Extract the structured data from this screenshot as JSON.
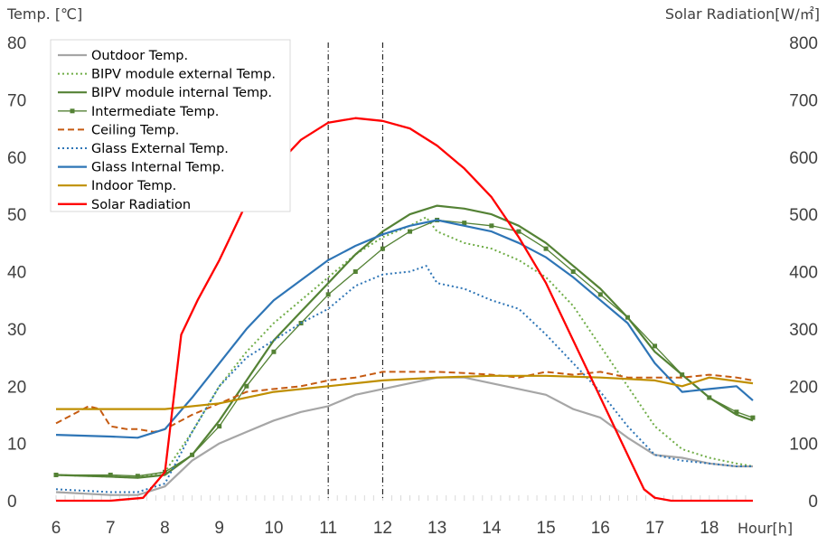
{
  "chart_data": {
    "type": "line",
    "title": "",
    "xlabel": "Hour[h]",
    "ylabel_left": "Temp. [℃]",
    "ylabel_right": "Solar Radiation[W/㎡]",
    "xlim": [
      6,
      19
    ],
    "ylim_left": [
      0,
      80
    ],
    "ylim_right": [
      0,
      800
    ],
    "x_ticks": [
      6,
      7,
      8,
      9,
      10,
      11,
      12,
      13,
      14,
      15,
      16,
      17,
      18
    ],
    "x_tick_labels": [
      "6",
      "7",
      "8",
      "9",
      "10",
      "11",
      "12",
      "13",
      "14",
      "15",
      "16",
      "17",
      "18"
    ],
    "y_left_ticks": [
      0,
      10,
      20,
      30,
      40,
      50,
      60,
      70,
      80
    ],
    "y_left_tick_labels": [
      "0",
      "10",
      "20",
      "30",
      "40",
      "50",
      "60",
      "70",
      "80"
    ],
    "y_right_ticks": [
      0,
      100,
      200,
      300,
      400,
      500,
      600,
      700,
      800
    ],
    "y_right_tick_labels": [
      "0",
      "100",
      "200",
      "300",
      "400",
      "500",
      "600",
      "700",
      "800"
    ],
    "vertical_reference_lines": [
      11,
      12
    ],
    "grid": false,
    "legend_position": "top-left",
    "series": [
      {
        "name": "Outdoor Temp.",
        "axis": "left",
        "color": "#a6a6a6",
        "style": "solid",
        "x": [
          6,
          7,
          7.5,
          8,
          8.5,
          9,
          9.5,
          10,
          10.5,
          11,
          11.5,
          12,
          12.5,
          13,
          13.5,
          14,
          14.5,
          15,
          15.5,
          16,
          16.5,
          17,
          17.5,
          18,
          18.5,
          18.8
        ],
        "y": [
          1.5,
          1,
          1,
          2.5,
          7,
          10,
          12,
          14,
          15.5,
          16.5,
          18.5,
          19.5,
          20.5,
          21.5,
          21.5,
          20.5,
          19.5,
          18.5,
          16,
          14.5,
          11,
          8,
          7.5,
          6.5,
          6,
          6
        ]
      },
      {
        "name": "BIPV module external Temp.",
        "axis": "left",
        "color": "#70ad47",
        "style": "dotted",
        "x": [
          6,
          7,
          7.5,
          8,
          8.5,
          9,
          9.5,
          10,
          10.5,
          11,
          11.5,
          12,
          12.5,
          12.8,
          13,
          13.5,
          14,
          14.5,
          15,
          15.5,
          16,
          16.5,
          17,
          17.5,
          18,
          18.5,
          18.8
        ],
        "y": [
          4.5,
          4.2,
          4,
          5,
          12,
          20,
          26,
          31,
          35,
          39,
          43,
          46,
          48,
          49.5,
          47,
          45,
          44,
          42,
          39,
          34,
          27,
          20,
          13,
          9,
          7.5,
          6.5,
          6
        ]
      },
      {
        "name": "BIPV module internal Temp.",
        "axis": "left",
        "color": "#548235",
        "style": "solid",
        "x": [
          6,
          7,
          7.5,
          8,
          8.5,
          9,
          9.5,
          10,
          10.5,
          11,
          11.5,
          12,
          12.5,
          13,
          13.5,
          14,
          14.5,
          15,
          15.5,
          16,
          16.5,
          17,
          17.5,
          18,
          18.5,
          18.8
        ],
        "y": [
          4.5,
          4.2,
          4,
          4.5,
          8,
          14,
          21,
          28,
          33,
          38,
          43,
          47,
          50,
          51.5,
          51,
          50,
          48,
          45,
          41,
          37,
          32,
          26,
          22,
          18,
          15,
          14
        ]
      },
      {
        "name": "Intermediate Temp.",
        "axis": "left",
        "color": "#548235",
        "style": "marker",
        "x": [
          6,
          7,
          7.5,
          8,
          8.5,
          9,
          9.5,
          10,
          10.5,
          11,
          11.5,
          12,
          12.5,
          13,
          13.5,
          14,
          14.5,
          15,
          15.5,
          16,
          16.5,
          17,
          17.5,
          18,
          18.5,
          18.8
        ],
        "y": [
          4.5,
          4.5,
          4.3,
          5,
          8,
          13,
          20,
          26,
          31,
          36,
          40,
          44,
          47,
          49,
          48.5,
          48,
          47,
          44,
          40,
          36,
          32,
          27,
          22,
          18,
          15.5,
          14.5
        ]
      },
      {
        "name": "Ceiling Temp.",
        "axis": "left",
        "color": "#c55a11",
        "style": "dashed",
        "x": [
          6,
          6.3,
          6.6,
          6.8,
          7,
          7.3,
          7.5,
          7.8,
          8,
          8.5,
          9,
          9.5,
          10,
          10.5,
          11,
          11.5,
          12,
          12.5,
          13,
          13.5,
          14,
          14.5,
          15,
          15.5,
          16,
          16.5,
          17,
          17.5,
          18,
          18.5,
          18.8
        ],
        "y": [
          13.5,
          15,
          16.5,
          16,
          13,
          12.5,
          12.5,
          12,
          12.5,
          15,
          17,
          19,
          19.5,
          20,
          21,
          21.5,
          22.5,
          22.5,
          22.5,
          22.3,
          22,
          21.5,
          22.5,
          22,
          22.5,
          21.5,
          21.5,
          21.5,
          22,
          21.5,
          21
        ]
      },
      {
        "name": "Glass External Temp.",
        "axis": "left",
        "color": "#2e75b6",
        "style": "dotted",
        "x": [
          6,
          7,
          7.5,
          8,
          8.5,
          9,
          9.5,
          10,
          10.5,
          11,
          11.5,
          12,
          12.5,
          12.8,
          13,
          13.5,
          14,
          14.5,
          15,
          15.5,
          16,
          16.5,
          17,
          17.5,
          18,
          18.5,
          18.8
        ],
        "y": [
          2,
          1.5,
          1.5,
          3,
          12,
          20,
          25,
          28,
          31,
          33.5,
          37.5,
          39.5,
          40,
          41,
          38,
          37,
          35,
          33.5,
          29,
          24,
          19,
          13,
          8,
          7,
          6.5,
          6,
          6
        ]
      },
      {
        "name": "Glass Internal Temp.",
        "axis": "left",
        "color": "#2e75b6",
        "style": "solid",
        "x": [
          6,
          7,
          7.5,
          8,
          8.5,
          9,
          9.5,
          10,
          10.5,
          11,
          11.5,
          12,
          12.5,
          13,
          13.5,
          14,
          14.5,
          15,
          15.5,
          16,
          16.5,
          17,
          17.5,
          18,
          18.5,
          18.8
        ],
        "y": [
          11.5,
          11.2,
          11,
          12.5,
          18,
          24,
          30,
          35,
          38.5,
          42,
          44.5,
          46.5,
          48,
          49,
          48,
          47,
          45,
          42.5,
          39,
          35,
          31,
          24,
          19,
          19.5,
          20,
          17.5
        ]
      },
      {
        "name": "Indoor Temp.",
        "axis": "left",
        "color": "#bf8f00",
        "style": "solid",
        "x": [
          6,
          7,
          8,
          9,
          10,
          11,
          12,
          13,
          14,
          15,
          16,
          17,
          17.5,
          18,
          18.8
        ],
        "y": [
          16,
          16,
          16,
          17,
          19,
          20,
          21,
          21.5,
          21.8,
          21.8,
          21.5,
          21,
          20,
          21.5,
          20.5
        ]
      },
      {
        "name": "Solar Radiation",
        "axis": "right",
        "color": "#ff0000",
        "style": "solid",
        "x": [
          6,
          7,
          7.6,
          8,
          8.3,
          8.6,
          9,
          9.5,
          10,
          10.5,
          11,
          11.5,
          12,
          12.5,
          13,
          13.5,
          14,
          14.5,
          15,
          15.5,
          16,
          16.5,
          16.8,
          17,
          17.3,
          18,
          18.8
        ],
        "y": [
          0,
          0,
          5,
          50,
          290,
          350,
          420,
          520,
          580,
          630,
          660,
          668,
          663,
          650,
          620,
          580,
          530,
          460,
          380,
          280,
          180,
          80,
          20,
          5,
          0,
          0,
          0
        ]
      }
    ]
  }
}
